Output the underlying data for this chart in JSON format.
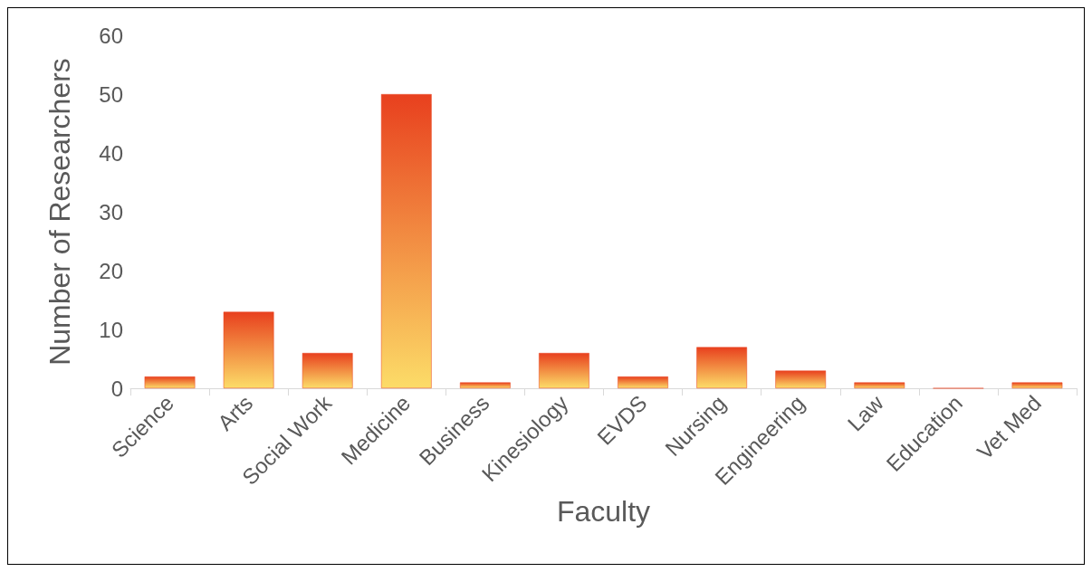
{
  "chart_data": {
    "type": "bar",
    "xlabel": "Faculty",
    "ylabel": "Number of Researchers",
    "categories": [
      "Science",
      "Arts",
      "Social Work",
      "Medicine",
      "Business",
      "Kinesiology",
      "EVDS",
      "Nursing",
      "Engineering",
      "Law",
      "Education",
      "Vet Med"
    ],
    "values": [
      2,
      13,
      6,
      50,
      1,
      6,
      2,
      7,
      3,
      1,
      0,
      1
    ],
    "color": "#e8401e",
    "ylim": [
      0,
      60
    ],
    "yticks": [
      0,
      10,
      20,
      30,
      40,
      50,
      60
    ],
    "grid": false
  }
}
